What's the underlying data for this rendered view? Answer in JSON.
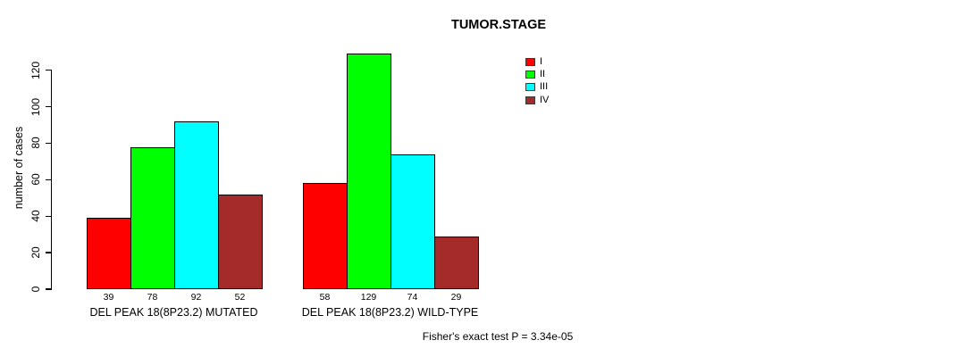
{
  "chart_data": {
    "type": "bar",
    "title": "TUMOR.STAGE",
    "xlabel": "",
    "ylabel": "number of cases",
    "ylim": [
      0,
      130
    ],
    "yticks": [
      0,
      20,
      40,
      60,
      80,
      100,
      120
    ],
    "grid": false,
    "legend_position": "inside-top-right",
    "categories": [
      "DEL PEAK 18(8P23.2) MUTATED",
      "DEL PEAK 18(8P23.2) WILD-TYPE"
    ],
    "series": [
      {
        "name": "I",
        "color": "#ff0000",
        "values": [
          39,
          58
        ]
      },
      {
        "name": "II",
        "color": "#00ff00",
        "values": [
          78,
          129
        ]
      },
      {
        "name": "III",
        "color": "#00ffff",
        "values": [
          92,
          74
        ]
      },
      {
        "name": "IV",
        "color": "#a52a2a",
        "values": [
          52,
          29
        ]
      }
    ],
    "bar_value_labels": [
      [
        39,
        78,
        92,
        52
      ],
      [
        58,
        129,
        74,
        29
      ]
    ],
    "annotation": "Fisher's exact test P = 3.34e-05"
  }
}
